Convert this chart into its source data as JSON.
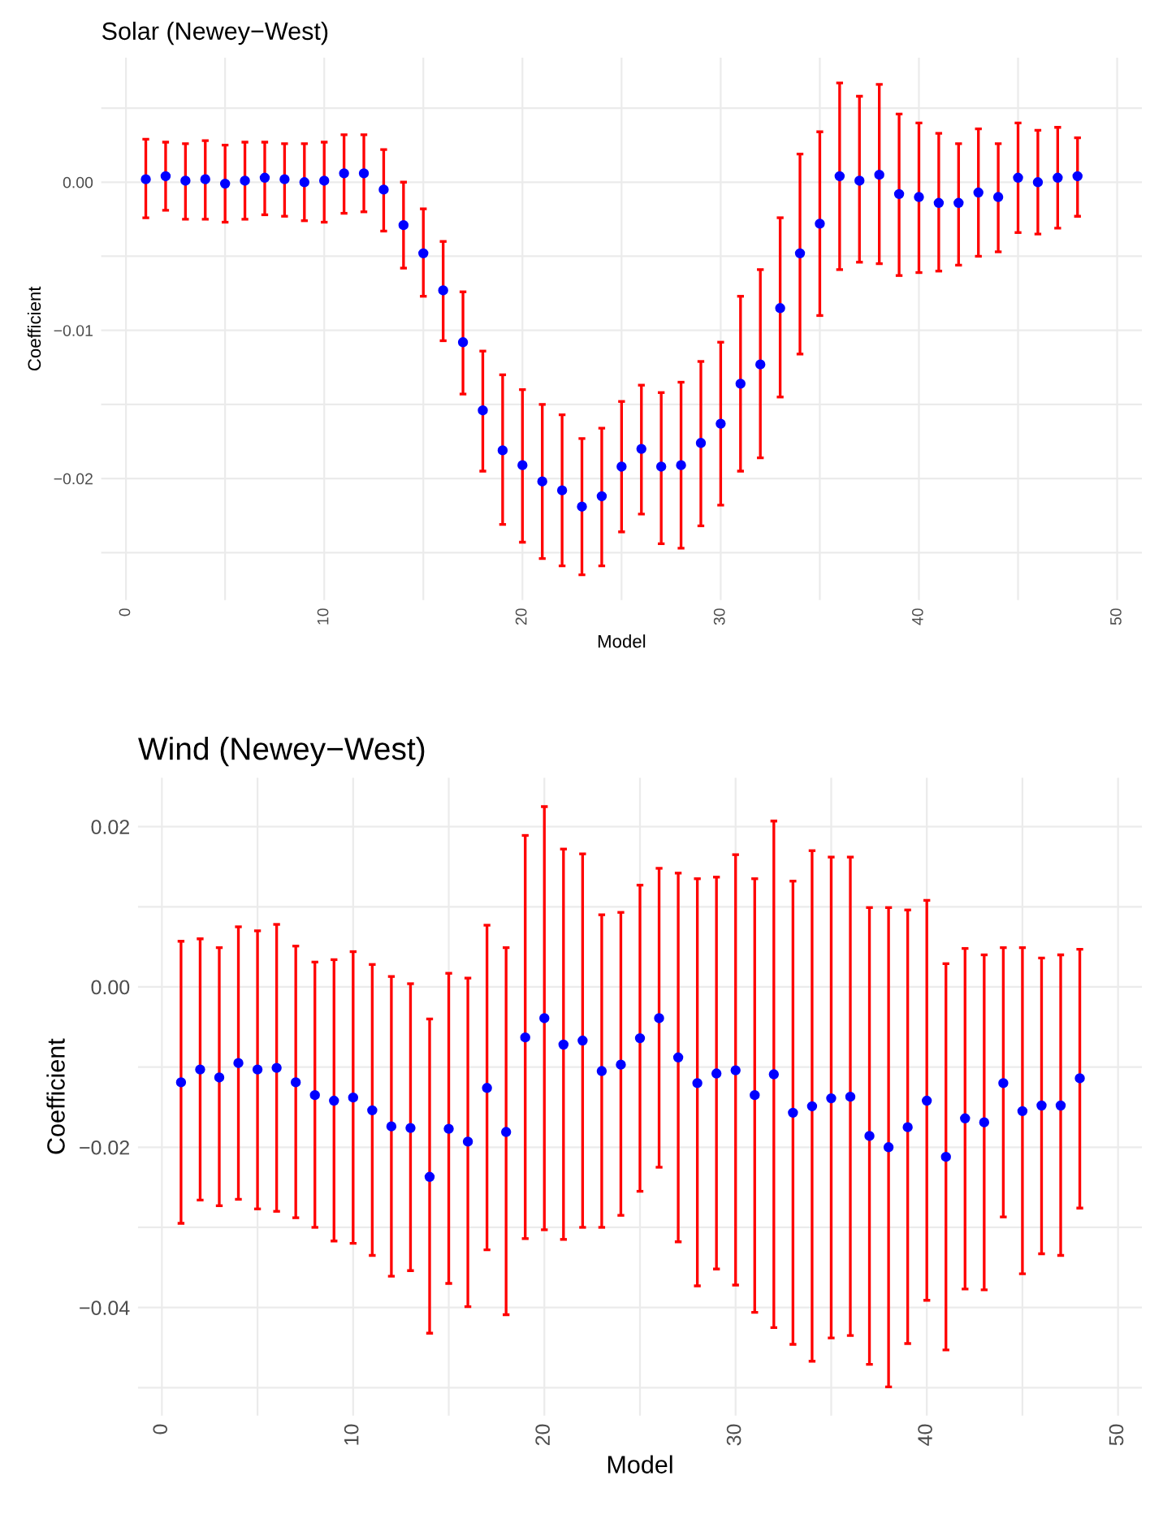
{
  "chart_data": [
    {
      "type": "scatter",
      "title": "Solar (Newey−West)",
      "xlabel": "Model",
      "ylabel": "Coefficient",
      "grid": true,
      "marker": "circle",
      "x": [
        1,
        2,
        3,
        4,
        5,
        6,
        7,
        8,
        9,
        10,
        11,
        12,
        13,
        14,
        15,
        16,
        17,
        18,
        19,
        20,
        21,
        22,
        23,
        24,
        25,
        26,
        27,
        28,
        29,
        30,
        31,
        32,
        33,
        34,
        35,
        36,
        37,
        38,
        39,
        40,
        41,
        42,
        43,
        44,
        45,
        46,
        47,
        48
      ],
      "series": [
        {
          "color": "#0000ff",
          "values": [
            0.0002,
            0.0004,
            0.0001,
            0.0002,
            -0.0001,
            0.0001,
            0.0003,
            0.0002,
            0.0,
            0.0001,
            0.0006,
            0.0006,
            -0.0005,
            -0.0029,
            -0.0048,
            -0.0073,
            -0.0108,
            -0.0154,
            -0.0181,
            -0.0191,
            -0.0202,
            -0.0208,
            -0.0219,
            -0.0212,
            -0.0192,
            -0.018,
            -0.0192,
            -0.0191,
            -0.0176,
            -0.0163,
            -0.0136,
            -0.0123,
            -0.0085,
            -0.0048,
            -0.0028,
            0.0004,
            0.0001,
            0.0005,
            -0.0008,
            -0.001,
            -0.0014,
            -0.0014,
            -0.0007,
            -0.001,
            0.0003,
            0.0,
            0.0003,
            0.0004
          ],
          "errors": [
            [
              -0.0024,
              0.0029
            ],
            [
              -0.0019,
              0.0027
            ],
            [
              -0.0025,
              0.0026
            ],
            [
              -0.0025,
              0.0028
            ],
            [
              -0.0027,
              0.0025
            ],
            [
              -0.0025,
              0.0027
            ],
            [
              -0.0022,
              0.0027
            ],
            [
              -0.0023,
              0.0026
            ],
            [
              -0.0026,
              0.0026
            ],
            [
              -0.0027,
              0.0027
            ],
            [
              -0.0021,
              0.0032
            ],
            [
              -0.002,
              0.0032
            ],
            [
              -0.0033,
              0.0022
            ],
            [
              -0.0058,
              0.0
            ],
            [
              -0.0077,
              -0.0018
            ],
            [
              -0.0107,
              -0.004
            ],
            [
              -0.0143,
              -0.0074
            ],
            [
              -0.0195,
              -0.0114
            ],
            [
              -0.0231,
              -0.013
            ],
            [
              -0.0243,
              -0.014
            ],
            [
              -0.0254,
              -0.015
            ],
            [
              -0.0259,
              -0.0157
            ],
            [
              -0.0265,
              -0.0173
            ],
            [
              -0.0259,
              -0.0166
            ],
            [
              -0.0236,
              -0.0148
            ],
            [
              -0.0224,
              -0.0137
            ],
            [
              -0.0244,
              -0.0142
            ],
            [
              -0.0247,
              -0.0135
            ],
            [
              -0.0232,
              -0.0121
            ],
            [
              -0.0218,
              -0.0108
            ],
            [
              -0.0195,
              -0.0077
            ],
            [
              -0.0186,
              -0.0059
            ],
            [
              -0.0145,
              -0.0024
            ],
            [
              -0.0116,
              0.0019
            ],
            [
              -0.009,
              0.0034
            ],
            [
              -0.0059,
              0.0067
            ],
            [
              -0.0054,
              0.0058
            ],
            [
              -0.0055,
              0.0066
            ],
            [
              -0.0063,
              0.0046
            ],
            [
              -0.0061,
              0.004
            ],
            [
              -0.006,
              0.0033
            ],
            [
              -0.0056,
              0.0026
            ],
            [
              -0.005,
              0.0036
            ],
            [
              -0.0047,
              0.0026
            ],
            [
              -0.0034,
              0.004
            ],
            [
              -0.0035,
              0.0035
            ],
            [
              -0.0031,
              0.0037
            ],
            [
              -0.0023,
              0.003
            ]
          ]
        }
      ],
      "xlim": [
        -1.25,
        51.25
      ],
      "xticks": [
        0,
        {
          "value": 5,
          "label": null
        },
        10,
        {
          "value": 15,
          "label": null
        },
        20,
        {
          "value": 25,
          "label": null
        },
        30,
        {
          "value": 35,
          "label": null
        },
        40,
        {
          "value": 45,
          "label": null
        },
        50
      ],
      "ylim": [
        -0.0282,
        0.0084
      ],
      "yticks": [
        {
          "value": -0.025,
          "label": null
        },
        {
          "value": -0.02,
          "label": "−0.02"
        },
        {
          "value": -0.015,
          "label": null
        },
        {
          "value": -0.01,
          "label": "−0.01"
        },
        {
          "value": -0.005,
          "label": null
        },
        {
          "value": 0,
          "label": "0.00"
        },
        {
          "value": 0.005,
          "label": null
        }
      ]
    },
    {
      "type": "scatter",
      "title": "Wind (Newey−West)",
      "xlabel": "Model",
      "ylabel": "Coefficient",
      "grid": true,
      "marker": "circle",
      "x": [
        1,
        2,
        3,
        4,
        5,
        6,
        7,
        8,
        9,
        10,
        11,
        12,
        13,
        14,
        15,
        16,
        17,
        18,
        19,
        20,
        21,
        22,
        23,
        24,
        25,
        26,
        27,
        28,
        29,
        30,
        31,
        32,
        33,
        34,
        35,
        36,
        37,
        38,
        39,
        40,
        41,
        42,
        43,
        44,
        45,
        46,
        47,
        48
      ],
      "series": [
        {
          "color": "#0000ff",
          "values": [
            -0.0119,
            -0.0103,
            -0.0113,
            -0.0095,
            -0.0103,
            -0.0101,
            -0.0119,
            -0.0135,
            -0.0142,
            -0.0138,
            -0.0154,
            -0.0174,
            -0.0176,
            -0.0237,
            -0.0177,
            -0.0193,
            -0.0126,
            -0.0181,
            -0.0063,
            -0.0039,
            -0.0072,
            -0.0067,
            -0.0105,
            -0.0097,
            -0.0064,
            -0.0039,
            -0.0088,
            -0.012,
            -0.0108,
            -0.0104,
            -0.0135,
            -0.0109,
            -0.0157,
            -0.0149,
            -0.0139,
            -0.0137,
            -0.0186,
            -0.02,
            -0.0175,
            -0.0142,
            -0.0212,
            -0.0164,
            -0.0169,
            -0.012,
            -0.0155,
            -0.0148,
            -0.0148,
            -0.0114
          ],
          "errors": [
            [
              -0.0295,
              0.0057
            ],
            [
              -0.0266,
              0.006
            ],
            [
              -0.0273,
              0.0049
            ],
            [
              -0.0265,
              0.0075
            ],
            [
              -0.0277,
              0.007
            ],
            [
              -0.028,
              0.0078
            ],
            [
              -0.0288,
              0.0051
            ],
            [
              -0.03,
              0.0031
            ],
            [
              -0.0317,
              0.0034
            ],
            [
              -0.032,
              0.0044
            ],
            [
              -0.0335,
              0.0028
            ],
            [
              -0.0361,
              0.0013
            ],
            [
              -0.0354,
              0.0004
            ],
            [
              -0.0432,
              -0.004
            ],
            [
              -0.037,
              0.0017
            ],
            [
              -0.0399,
              0.0011
            ],
            [
              -0.0328,
              0.0077
            ],
            [
              -0.0409,
              0.0049
            ],
            [
              -0.0314,
              0.0189
            ],
            [
              -0.0303,
              0.0225
            ],
            [
              -0.0315,
              0.0172
            ],
            [
              -0.03,
              0.0166
            ],
            [
              -0.03,
              0.009
            ],
            [
              -0.0285,
              0.0093
            ],
            [
              -0.0255,
              0.0127
            ],
            [
              -0.0225,
              0.0148
            ],
            [
              -0.0318,
              0.0142
            ],
            [
              -0.0373,
              0.0135
            ],
            [
              -0.0352,
              0.0137
            ],
            [
              -0.0372,
              0.0165
            ],
            [
              -0.0406,
              0.0135
            ],
            [
              -0.0425,
              0.0207
            ],
            [
              -0.0446,
              0.0132
            ],
            [
              -0.0467,
              0.017
            ],
            [
              -0.0438,
              0.0162
            ],
            [
              -0.0435,
              0.0162
            ],
            [
              -0.0471,
              0.0099
            ],
            [
              -0.0499,
              0.0099
            ],
            [
              -0.0445,
              0.0096
            ],
            [
              -0.0391,
              0.0108
            ],
            [
              -0.0453,
              0.0029
            ],
            [
              -0.0377,
              0.0048
            ],
            [
              -0.0378,
              0.004
            ],
            [
              -0.0287,
              0.0049
            ],
            [
              -0.0358,
              0.0049
            ],
            [
              -0.0333,
              0.0036
            ],
            [
              -0.0335,
              0.004
            ],
            [
              -0.0276,
              0.0047
            ]
          ]
        }
      ],
      "xlim": [
        -1.25,
        51.25
      ],
      "xticks": [
        0,
        {
          "value": 5,
          "label": null
        },
        10,
        {
          "value": 15,
          "label": null
        },
        20,
        {
          "value": 25,
          "label": null
        },
        30,
        {
          "value": 35,
          "label": null
        },
        40,
        {
          "value": 45,
          "label": null
        },
        50
      ],
      "ylim": [
        -0.0535,
        0.0261
      ],
      "yticks": [
        {
          "value": -0.05,
          "label": null
        },
        {
          "value": -0.04,
          "label": "−0.04"
        },
        {
          "value": -0.03,
          "label": null
        },
        {
          "value": -0.02,
          "label": "−0.02"
        },
        {
          "value": -0.01,
          "label": null
        },
        {
          "value": 0,
          "label": "0.00"
        },
        {
          "value": 0.01,
          "label": null
        },
        {
          "value": 0.02,
          "label": "0.02"
        }
      ]
    }
  ]
}
